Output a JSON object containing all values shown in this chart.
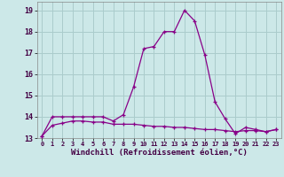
{
  "xlabel": "Windchill (Refroidissement éolien,°C)",
  "bg_color": "#cce8e8",
  "grid_color": "#aacccc",
  "line_color": "#880088",
  "hours": [
    0,
    1,
    2,
    3,
    4,
    5,
    6,
    7,
    8,
    9,
    10,
    11,
    12,
    13,
    14,
    15,
    16,
    17,
    18,
    19,
    20,
    21,
    22,
    23
  ],
  "curve1": [
    13.1,
    14.0,
    14.0,
    14.0,
    14.0,
    14.0,
    14.0,
    13.8,
    14.1,
    15.4,
    17.2,
    17.3,
    18.0,
    18.0,
    19.0,
    18.5,
    16.9,
    14.7,
    13.9,
    13.2,
    13.5,
    13.4,
    13.3,
    13.4
  ],
  "curve2": [
    13.1,
    13.6,
    13.7,
    13.8,
    13.8,
    13.75,
    13.75,
    13.65,
    13.65,
    13.65,
    13.6,
    13.55,
    13.55,
    13.5,
    13.5,
    13.45,
    13.4,
    13.4,
    13.35,
    13.3,
    13.35,
    13.35,
    13.3,
    13.4
  ],
  "ylim": [
    13.0,
    19.4
  ],
  "yticks": [
    13,
    14,
    15,
    16,
    17,
    18,
    19
  ],
  "xticks": [
    0,
    1,
    2,
    3,
    4,
    5,
    6,
    7,
    8,
    9,
    10,
    11,
    12,
    13,
    14,
    15,
    16,
    17,
    18,
    19,
    20,
    21,
    22,
    23
  ]
}
